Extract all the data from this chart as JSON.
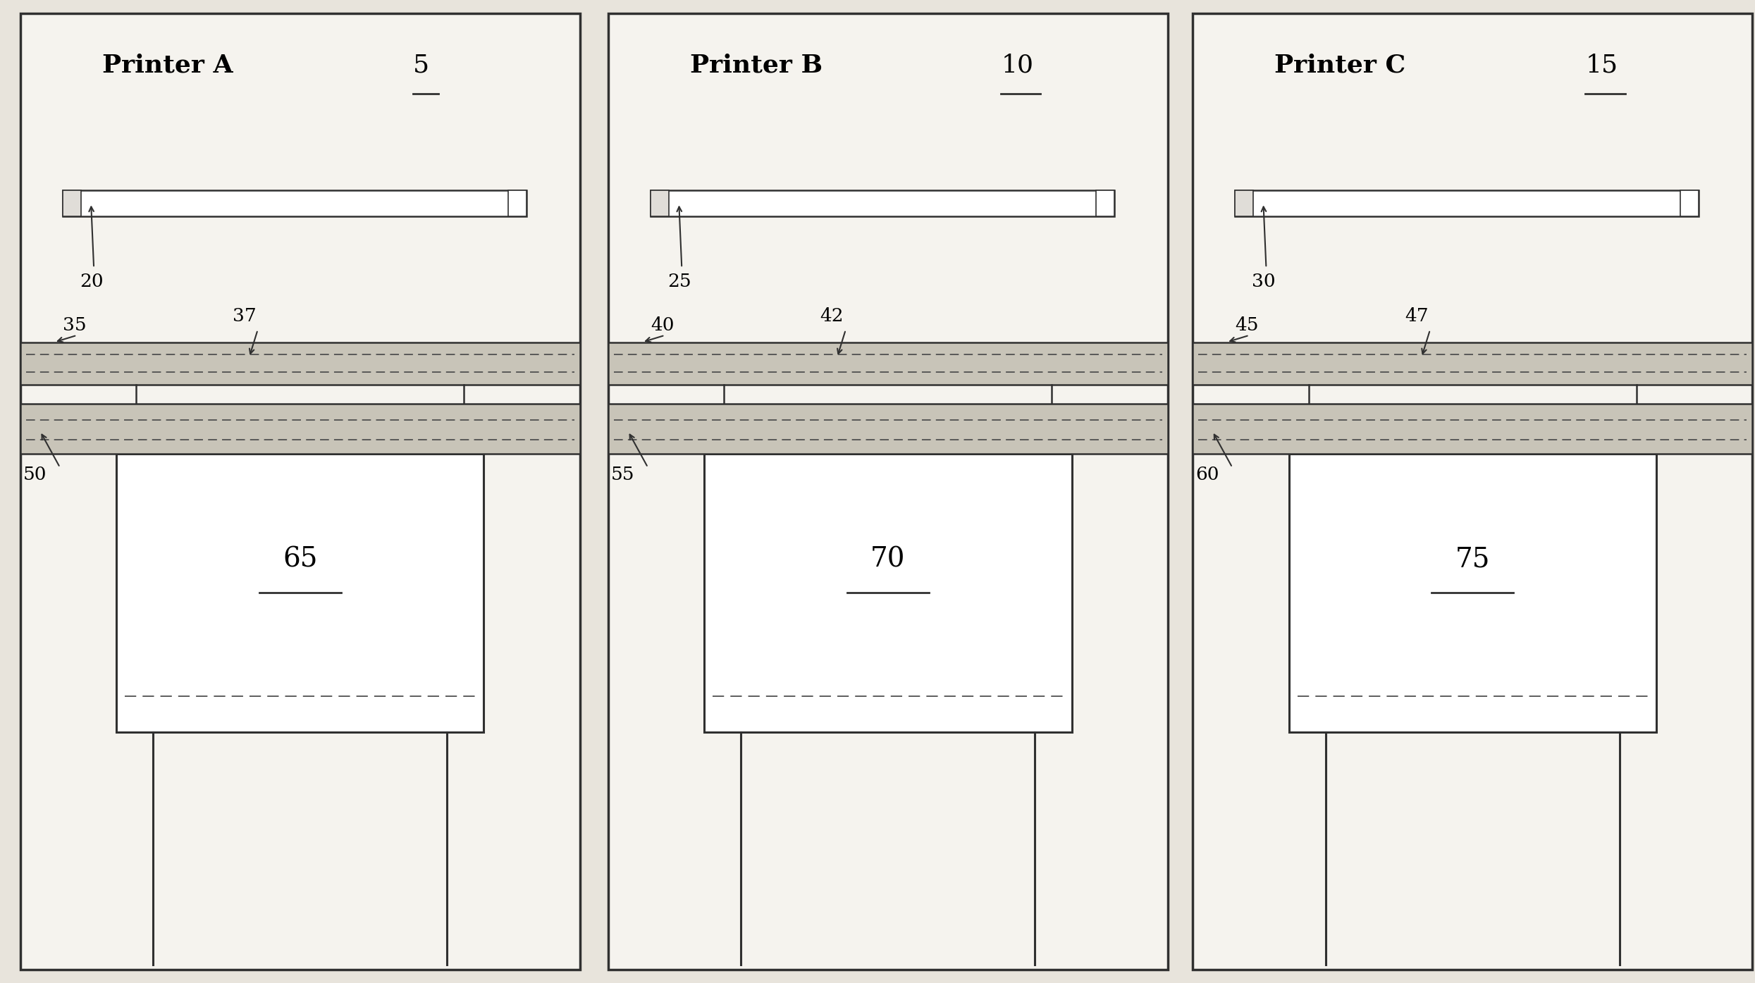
{
  "background_color": "#e8e4dc",
  "panel_bg": "#f5f3ee",
  "border_color": "#303030",
  "line_color": "#303030",
  "dashed_color": "#505050",
  "fill_color": "#c8c4b8",
  "title_fontsize": 26,
  "label_fontsize": 19,
  "panels": [
    {
      "title": "Printer A",
      "ref_num": "5",
      "stencil_label": "20",
      "upper_conveyor_label": "35",
      "upper_conveyor_sublabel": "37",
      "lower_conveyor_label": "50",
      "box_label": "65"
    },
    {
      "title": "Printer B",
      "ref_num": "10",
      "stencil_label": "25",
      "upper_conveyor_label": "40",
      "upper_conveyor_sublabel": "42",
      "lower_conveyor_label": "55",
      "box_label": "70"
    },
    {
      "title": "Printer C",
      "ref_num": "15",
      "stencil_label": "30",
      "upper_conveyor_label": "45",
      "upper_conveyor_sublabel": "47",
      "lower_conveyor_label": "60",
      "box_label": "75"
    }
  ]
}
